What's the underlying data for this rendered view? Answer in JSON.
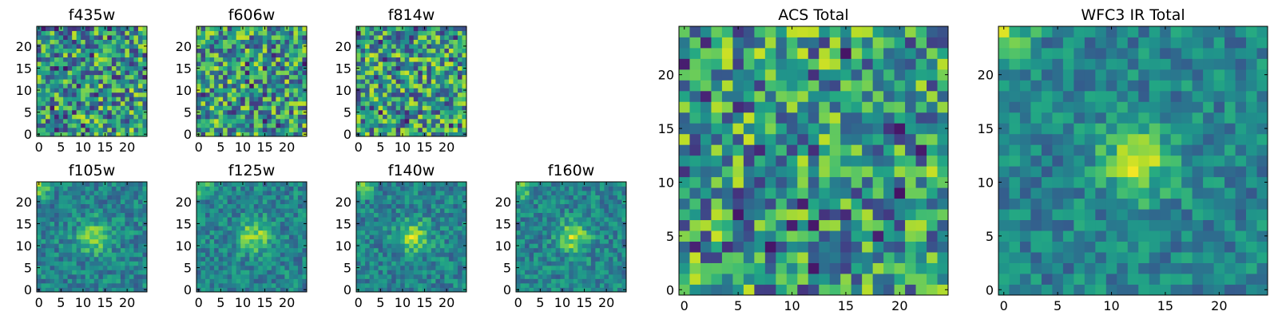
{
  "chart_data": {
    "type": "heatmap",
    "colormap": "viridis",
    "grid": false,
    "panels": [
      {
        "id": "f435w",
        "title": "f435w",
        "grid_size": 25,
        "xlim": [
          -0.5,
          24.5
        ],
        "ylim": [
          -0.5,
          24.5
        ],
        "xticks": [
          0,
          5,
          10,
          15,
          20
        ],
        "yticks": [
          0,
          5,
          10,
          15,
          20
        ],
        "pattern": "noise"
      },
      {
        "id": "f606w",
        "title": "f606w",
        "grid_size": 25,
        "xlim": [
          -0.5,
          24.5
        ],
        "ylim": [
          -0.5,
          24.5
        ],
        "xticks": [
          0,
          5,
          10,
          15,
          20
        ],
        "yticks": [
          0,
          5,
          10,
          15,
          20
        ],
        "pattern": "noise"
      },
      {
        "id": "f814w",
        "title": "f814w",
        "grid_size": 25,
        "xlim": [
          -0.5,
          24.5
        ],
        "ylim": [
          -0.5,
          24.5
        ],
        "xticks": [
          0,
          5,
          10,
          15,
          20
        ],
        "yticks": [
          0,
          5,
          10,
          15,
          20
        ],
        "pattern": "noise"
      },
      {
        "id": "f105w",
        "title": "f105w",
        "grid_size": 25,
        "xlim": [
          -0.5,
          24.5
        ],
        "ylim": [
          -0.5,
          24.5
        ],
        "xticks": [
          0,
          5,
          10,
          15,
          20
        ],
        "yticks": [
          0,
          5,
          10,
          15,
          20
        ],
        "pattern": "source",
        "source_center": [
          12.5,
          12
        ]
      },
      {
        "id": "f125w",
        "title": "f125w",
        "grid_size": 25,
        "xlim": [
          -0.5,
          24.5
        ],
        "ylim": [
          -0.5,
          24.5
        ],
        "xticks": [
          0,
          5,
          10,
          15,
          20
        ],
        "yticks": [
          0,
          5,
          10,
          15,
          20
        ],
        "pattern": "source",
        "source_center": [
          12.5,
          12
        ]
      },
      {
        "id": "f140w",
        "title": "f140w",
        "grid_size": 25,
        "xlim": [
          -0.5,
          24.5
        ],
        "ylim": [
          -0.5,
          24.5
        ],
        "xticks": [
          0,
          5,
          10,
          15,
          20
        ],
        "yticks": [
          0,
          5,
          10,
          15,
          20
        ],
        "pattern": "source",
        "source_center": [
          12.5,
          12
        ]
      },
      {
        "id": "f160w",
        "title": "f160w",
        "grid_size": 25,
        "xlim": [
          -0.5,
          24.5
        ],
        "ylim": [
          -0.5,
          24.5
        ],
        "xticks": [
          0,
          5,
          10,
          15,
          20
        ],
        "yticks": [
          0,
          5,
          10,
          15,
          20
        ],
        "pattern": "source",
        "source_center": [
          12.5,
          12
        ]
      },
      {
        "id": "acs-total",
        "title": "ACS Total",
        "grid_size": 25,
        "xlim": [
          -0.5,
          24.5
        ],
        "ylim": [
          -0.5,
          24.5
        ],
        "xticks": [
          0,
          5,
          10,
          15,
          20
        ],
        "yticks": [
          0,
          5,
          10,
          15,
          20
        ],
        "pattern": "noise"
      },
      {
        "id": "wfc3-ir-total",
        "title": "WFC3 IR Total",
        "grid_size": 25,
        "xlim": [
          -0.5,
          24.5
        ],
        "ylim": [
          -0.5,
          24.5
        ],
        "xticks": [
          0,
          5,
          10,
          15,
          20
        ],
        "yticks": [
          0,
          5,
          10,
          15,
          20
        ],
        "pattern": "source",
        "source_center": [
          12.5,
          12
        ]
      }
    ]
  }
}
